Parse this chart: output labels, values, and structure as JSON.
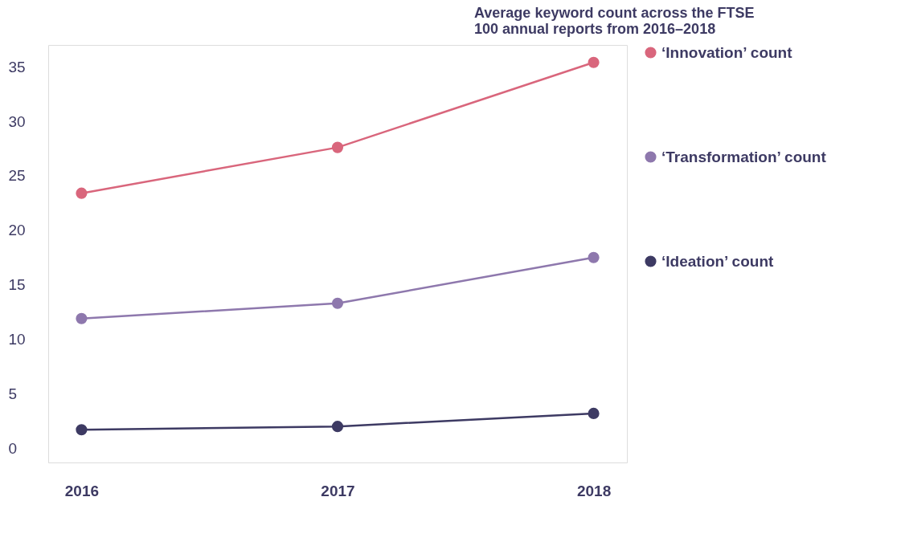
{
  "chart_data": {
    "type": "line",
    "title": "Average keyword count across the FTSE 100 annual reports from 2016–2018",
    "categories": [
      "2016",
      "2017",
      "2018"
    ],
    "series": [
      {
        "name": "‘Innovation’ count",
        "color": "#d9667c",
        "values": [
          23.4,
          27.6,
          35.4
        ]
      },
      {
        "name": "‘Transformation’ count",
        "color": "#8e78ad",
        "values": [
          11.9,
          13.3,
          17.5
        ]
      },
      {
        "name": "‘Ideation’ count",
        "color": "#3d3a63",
        "values": [
          1.7,
          2.0,
          3.2
        ]
      }
    ],
    "ylim": [
      -1.3,
      37
    ],
    "yticks": [
      0,
      5,
      10,
      15,
      20,
      25,
      30,
      35
    ],
    "grid": false,
    "legend": "right",
    "marker": "circle",
    "line_style": "solid"
  }
}
